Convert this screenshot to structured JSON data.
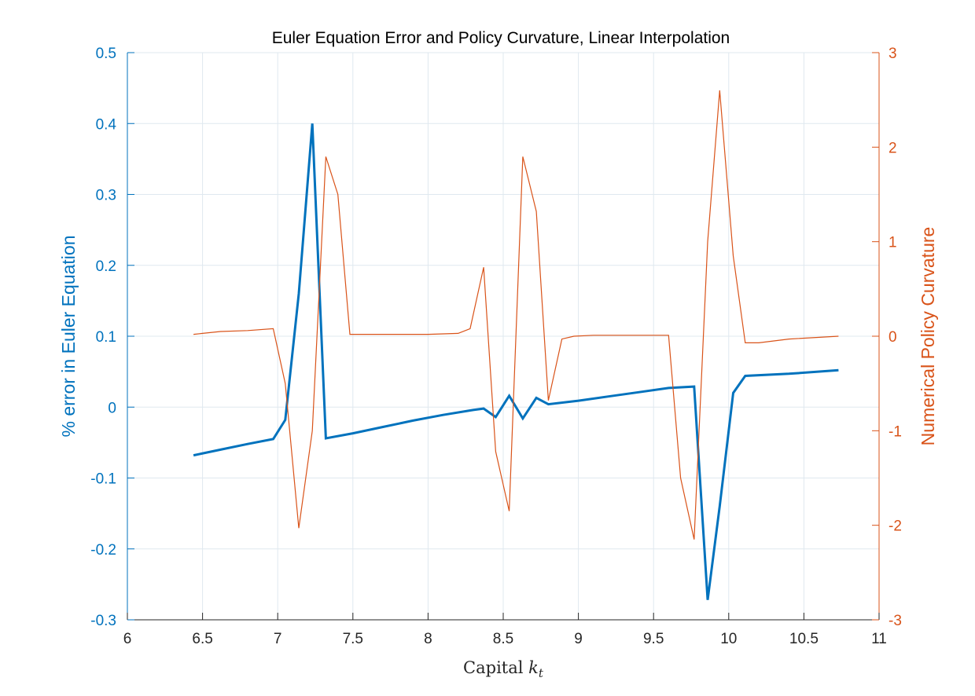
{
  "chart_data": {
    "type": "line",
    "title": "Euler Equation Error and Policy Curvature, Linear Interpolation",
    "xlabel": "Capital",
    "xlabel_symbol": "k",
    "xlabel_subscript": "t",
    "ylabel_left": "% error in Euler Equation",
    "ylabel_right": "Numerical Policy Curvature",
    "xlim": [
      6,
      11
    ],
    "ylim_left": [
      -0.3,
      0.5
    ],
    "ylim_right": [
      -3,
      3
    ],
    "x_ticks": [
      "6",
      "6.5",
      "7",
      "7.5",
      "8",
      "8.5",
      "9",
      "9.5",
      "10",
      "10.5",
      "11"
    ],
    "y_left_ticks": [
      "-0.3",
      "-0.2",
      "-0.1",
      "0",
      "0.1",
      "0.2",
      "0.3",
      "0.4",
      "0.5"
    ],
    "y_right_ticks": [
      "-3",
      "-2",
      "-1",
      "0",
      "1",
      "2",
      "3"
    ],
    "grid": true,
    "colors": {
      "left": "#0072bd",
      "right": "#d95319",
      "axis": "#262626",
      "grid": "#dfe8ef"
    },
    "series": [
      {
        "axis": "left",
        "x": [
          6.44,
          6.62,
          6.8,
          6.97,
          7.05,
          7.14,
          7.23,
          7.32,
          7.5,
          7.7,
          7.9,
          8.1,
          8.3,
          8.37,
          8.45,
          8.54,
          8.63,
          8.72,
          8.8,
          9.0,
          9.2,
          9.4,
          9.6,
          9.77,
          9.86,
          9.94,
          10.03,
          10.11,
          10.4,
          10.73
        ],
        "y": [
          -0.068,
          -0.06,
          -0.052,
          -0.045,
          -0.018,
          0.16,
          0.4,
          -0.044,
          -0.037,
          -0.028,
          -0.019,
          -0.011,
          -0.004,
          -0.002,
          -0.014,
          0.016,
          -0.016,
          0.013,
          0.004,
          0.009,
          0.015,
          0.021,
          0.027,
          0.029,
          -0.272,
          -0.14,
          0.02,
          0.044,
          0.047,
          0.052
        ]
      },
      {
        "axis": "right",
        "x": [
          6.44,
          6.62,
          6.8,
          6.97,
          7.05,
          7.14,
          7.23,
          7.32,
          7.4,
          7.48,
          7.6,
          7.8,
          8.0,
          8.2,
          8.28,
          8.37,
          8.45,
          8.54,
          8.63,
          8.72,
          8.8,
          8.89,
          8.97,
          9.1,
          9.3,
          9.5,
          9.6,
          9.68,
          9.77,
          9.86,
          9.94,
          10.03,
          10.11,
          10.2,
          10.4,
          10.73
        ],
        "y": [
          0.02,
          0.05,
          0.06,
          0.08,
          -0.5,
          -2.03,
          -1.0,
          1.9,
          1.5,
          0.02,
          0.02,
          0.02,
          0.02,
          0.03,
          0.08,
          0.73,
          -1.22,
          -1.85,
          1.9,
          1.32,
          -0.68,
          -0.03,
          0.0,
          0.01,
          0.01,
          0.01,
          0.01,
          -1.5,
          -2.15,
          1.0,
          2.6,
          0.85,
          -0.07,
          -0.07,
          -0.03,
          0.0
        ]
      }
    ]
  }
}
